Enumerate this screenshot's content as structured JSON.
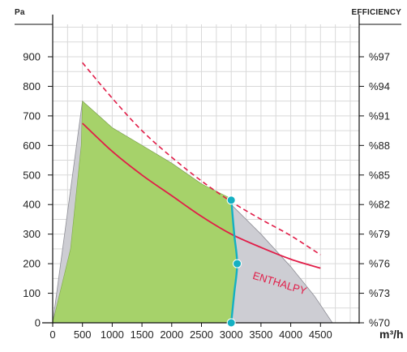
{
  "chart_data": {
    "type": "area",
    "ylabel": "Pa",
    "y2label": "EFFICIENCY",
    "xlabel": "m³/h",
    "xlim": [
      0,
      5150
    ],
    "ylim": [
      0,
      1000
    ],
    "x_ticks": [
      0,
      500,
      1000,
      1500,
      2000,
      2500,
      3000,
      3500,
      4000,
      4500
    ],
    "x_tick_labels": [
      "0",
      "500",
      "1000",
      "1500",
      "2000",
      "2500",
      "3000",
      "3500",
      "4000",
      "4500"
    ],
    "y_ticks": [
      0,
      100,
      200,
      300,
      400,
      500,
      600,
      700,
      800,
      900
    ],
    "y_tick_labels": [
      "0",
      "100",
      "200",
      "300",
      "400",
      "500",
      "600",
      "700",
      "800",
      "900"
    ],
    "y2_ticks": [
      0,
      100,
      200,
      300,
      400,
      500,
      600,
      700,
      800,
      900
    ],
    "y2_tick_labels": [
      "%70",
      "%73",
      "%76",
      "%79",
      "%82",
      "%85",
      "%88",
      "%91",
      "%94",
      "%97"
    ],
    "grid": true,
    "colors": {
      "green_area": "#a6d26a",
      "gray_area": "#cdcdd3",
      "red_line": "#e11d48",
      "cyan_line": "#14b0c2",
      "grid": "#d9d9d9"
    },
    "series": [
      {
        "kind": "gray-area",
        "points": [
          [
            0,
            0
          ],
          [
            500,
            750
          ],
          [
            1000,
            660
          ],
          [
            1500,
            600
          ],
          [
            2000,
            540
          ],
          [
            2500,
            470
          ],
          [
            3000,
            400
          ],
          [
            3500,
            300
          ],
          [
            4000,
            190
          ],
          [
            4400,
            90
          ],
          [
            4700,
            0
          ]
        ]
      },
      {
        "kind": "green-area",
        "points": [
          [
            0,
            0
          ],
          [
            300,
            250
          ],
          [
            480,
            600
          ],
          [
            500,
            750
          ],
          [
            1000,
            660
          ],
          [
            1500,
            600
          ],
          [
            2000,
            540
          ],
          [
            2500,
            470
          ],
          [
            3000,
            420
          ],
          [
            3050,
            300
          ],
          [
            3100,
            200
          ],
          [
            3050,
            100
          ],
          [
            3000,
            0
          ]
        ]
      },
      {
        "kind": "red-line",
        "name": "ENTHALPY",
        "points": [
          [
            500,
            675
          ],
          [
            1000,
            580
          ],
          [
            1500,
            500
          ],
          [
            2000,
            430
          ],
          [
            2500,
            360
          ],
          [
            3000,
            300
          ],
          [
            3500,
            255
          ],
          [
            4000,
            215
          ],
          [
            4500,
            185
          ]
        ]
      },
      {
        "kind": "red-dashed",
        "points": [
          [
            500,
            880
          ],
          [
            1000,
            760
          ],
          [
            1500,
            650
          ],
          [
            2000,
            560
          ],
          [
            2500,
            480
          ],
          [
            3000,
            410
          ],
          [
            3500,
            350
          ],
          [
            4000,
            295
          ],
          [
            4500,
            230
          ]
        ]
      },
      {
        "kind": "cyan-line",
        "points": [
          [
            3000,
            420
          ],
          [
            3050,
            300
          ],
          [
            3100,
            200
          ],
          [
            3050,
            100
          ],
          [
            3000,
            0
          ]
        ]
      }
    ],
    "markers": [
      {
        "x": 3000,
        "y": 415
      },
      {
        "x": 3100,
        "y": 200
      },
      {
        "x": 3000,
        "y": 0
      }
    ],
    "annotations": [
      {
        "text": "ENTHALPY",
        "x": 3350,
        "y": 150
      }
    ]
  }
}
